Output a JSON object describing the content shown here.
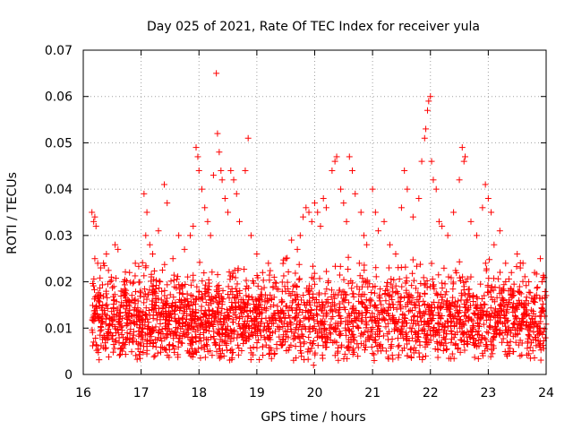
{
  "chart_data": {
    "type": "scatter",
    "title": "Day 025 of 2021, Rate Of TEC Index for receiver yula",
    "xlabel": "GPS time / hours",
    "ylabel": "ROTI / TECUs",
    "xlim": [
      16,
      24
    ],
    "ylim": [
      0,
      0.07
    ],
    "x_ticks": [
      16,
      17,
      18,
      19,
      20,
      21,
      22,
      23,
      24
    ],
    "x_tick_labels": [
      "16",
      "17",
      "18",
      "19",
      "20",
      "21",
      "22",
      "23",
      "24"
    ],
    "y_ticks": [
      0,
      0.01,
      0.02,
      0.03,
      0.04,
      0.05,
      0.06,
      0.07
    ],
    "y_tick_labels": [
      "0",
      "0.01",
      "0.02",
      "0.03",
      "0.04",
      "0.05",
      "0.06",
      "0.07"
    ],
    "grid": true,
    "marker": "plus",
    "color": "#ff0000",
    "series": [
      {
        "name": "ROTI",
        "points": [
          [
            16.15,
            0.035
          ],
          [
            16.18,
            0.033
          ],
          [
            16.2,
            0.034
          ],
          [
            16.22,
            0.032
          ],
          [
            16.2,
            0.025
          ],
          [
            16.25,
            0.024
          ],
          [
            16.3,
            0.023
          ],
          [
            16.35,
            0.024
          ],
          [
            16.4,
            0.026
          ],
          [
            16.55,
            0.028
          ],
          [
            16.6,
            0.027
          ],
          [
            16.7,
            0.02
          ],
          [
            16.8,
            0.022
          ],
          [
            16.9,
            0.024
          ],
          [
            17.05,
            0.039
          ],
          [
            17.1,
            0.035
          ],
          [
            17.08,
            0.03
          ],
          [
            17.15,
            0.028
          ],
          [
            17.2,
            0.026
          ],
          [
            17.3,
            0.031
          ],
          [
            17.4,
            0.041
          ],
          [
            17.45,
            0.037
          ],
          [
            17.55,
            0.025
          ],
          [
            17.65,
            0.03
          ],
          [
            17.75,
            0.027
          ],
          [
            17.85,
            0.03
          ],
          [
            17.9,
            0.032
          ],
          [
            17.95,
            0.049
          ],
          [
            17.98,
            0.047
          ],
          [
            18.0,
            0.044
          ],
          [
            18.05,
            0.04
          ],
          [
            18.1,
            0.036
          ],
          [
            18.15,
            0.033
          ],
          [
            18.2,
            0.03
          ],
          [
            18.25,
            0.043
          ],
          [
            18.3,
            0.065
          ],
          [
            18.32,
            0.052
          ],
          [
            18.35,
            0.048
          ],
          [
            18.38,
            0.044
          ],
          [
            18.4,
            0.042
          ],
          [
            18.45,
            0.038
          ],
          [
            18.5,
            0.035
          ],
          [
            18.55,
            0.044
          ],
          [
            18.6,
            0.042
          ],
          [
            18.65,
            0.039
          ],
          [
            18.7,
            0.033
          ],
          [
            18.8,
            0.044
          ],
          [
            18.85,
            0.051
          ],
          [
            18.9,
            0.03
          ],
          [
            19.0,
            0.026
          ],
          [
            19.1,
            0.022
          ],
          [
            19.2,
            0.024
          ],
          [
            19.3,
            0.021
          ],
          [
            19.5,
            0.025
          ],
          [
            19.6,
            0.029
          ],
          [
            19.7,
            0.027
          ],
          [
            19.75,
            0.03
          ],
          [
            19.8,
            0.034
          ],
          [
            19.85,
            0.036
          ],
          [
            19.9,
            0.035
          ],
          [
            19.95,
            0.033
          ],
          [
            20.0,
            0.037
          ],
          [
            20.05,
            0.035
          ],
          [
            20.1,
            0.032
          ],
          [
            20.15,
            0.038
          ],
          [
            20.2,
            0.036
          ],
          [
            20.3,
            0.044
          ],
          [
            20.35,
            0.046
          ],
          [
            20.38,
            0.047
          ],
          [
            20.45,
            0.04
          ],
          [
            20.5,
            0.037
          ],
          [
            20.55,
            0.033
          ],
          [
            20.6,
            0.047
          ],
          [
            20.65,
            0.044
          ],
          [
            20.7,
            0.039
          ],
          [
            20.8,
            0.035
          ],
          [
            20.85,
            0.03
          ],
          [
            20.9,
            0.028
          ],
          [
            21.0,
            0.04
          ],
          [
            21.05,
            0.035
          ],
          [
            21.1,
            0.031
          ],
          [
            21.2,
            0.033
          ],
          [
            21.3,
            0.028
          ],
          [
            21.4,
            0.026
          ],
          [
            21.5,
            0.036
          ],
          [
            21.55,
            0.044
          ],
          [
            21.6,
            0.04
          ],
          [
            21.7,
            0.034
          ],
          [
            21.8,
            0.038
          ],
          [
            21.85,
            0.046
          ],
          [
            21.9,
            0.051
          ],
          [
            21.92,
            0.053
          ],
          [
            21.95,
            0.057
          ],
          [
            21.97,
            0.059
          ],
          [
            22.0,
            0.06
          ],
          [
            22.02,
            0.046
          ],
          [
            22.05,
            0.042
          ],
          [
            22.1,
            0.04
          ],
          [
            22.15,
            0.033
          ],
          [
            22.2,
            0.032
          ],
          [
            22.3,
            0.03
          ],
          [
            22.4,
            0.035
          ],
          [
            22.5,
            0.042
          ],
          [
            22.55,
            0.049
          ],
          [
            22.58,
            0.046
          ],
          [
            22.6,
            0.047
          ],
          [
            22.7,
            0.033
          ],
          [
            22.8,
            0.03
          ],
          [
            22.9,
            0.036
          ],
          [
            22.95,
            0.041
          ],
          [
            23.0,
            0.038
          ],
          [
            23.05,
            0.035
          ],
          [
            23.1,
            0.028
          ],
          [
            23.2,
            0.031
          ],
          [
            23.3,
            0.024
          ],
          [
            23.4,
            0.022
          ],
          [
            23.5,
            0.026
          ],
          [
            23.6,
            0.024
          ],
          [
            23.7,
            0.02
          ],
          [
            23.8,
            0.022
          ],
          [
            23.9,
            0.025
          ],
          [
            23.95,
            0.021
          ],
          [
            19.98,
            0.002
          ],
          [
            19.1,
            0.006
          ],
          [
            20.4,
            0.005
          ],
          [
            21.6,
            0.004
          ],
          [
            23.55,
            0.004
          ]
        ]
      }
    ],
    "dense_band": {
      "x_range": [
        16.15,
        24.0
      ],
      "y_center": 0.012,
      "y_spread": 0.007
    }
  }
}
